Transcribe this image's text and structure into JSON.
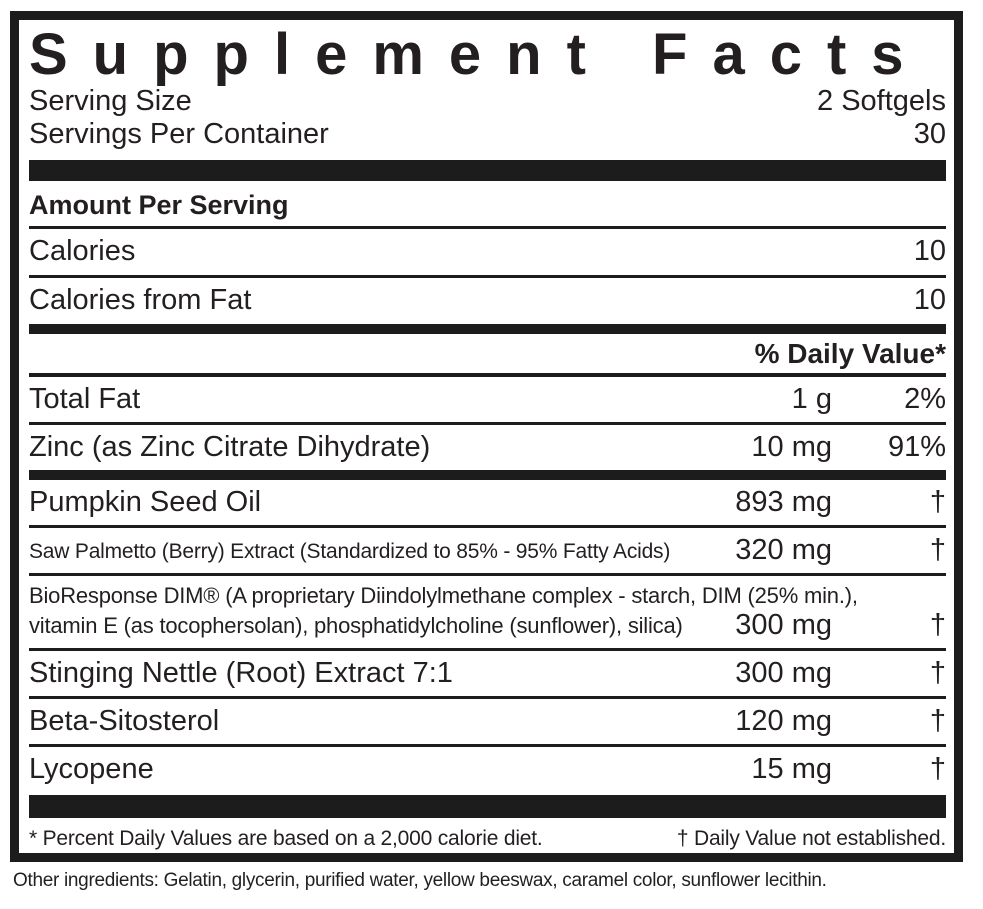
{
  "panel": {
    "title": "Supplement Facts",
    "serving_size": {
      "label": "Serving Size",
      "value": "2 Softgels"
    },
    "servings_per_container": {
      "label": "Servings Per Container",
      "value": "30"
    },
    "amount_per_serving_label": "Amount Per Serving",
    "calories_rows": [
      {
        "label": "Calories",
        "value": "10"
      },
      {
        "label": "Calories from Fat",
        "value": "10"
      }
    ],
    "daily_value_header": "% Daily Value*",
    "nutrient_rows": [
      {
        "name": "Total Fat",
        "amount": "1 g",
        "dv": "2%"
      },
      {
        "name": "Zinc (as Zinc Citrate Dihydrate)",
        "amount": "10 mg",
        "dv": "91%"
      }
    ],
    "ingredient_rows": [
      {
        "name": "Pumpkin Seed Oil",
        "amount": "893 mg",
        "dv": "†"
      },
      {
        "name": "Saw Palmetto (Berry) Extract (Standardized to 85% - 95% Fatty Acids)",
        "amount": "320 mg",
        "dv": "†"
      },
      {
        "name_line1": "BioResponse DIM® (A proprietary Diindolylmethane complex - starch, DIM (25% min.),",
        "name_line2": "vitamin E (as tocophersolan), phosphatidylcholine (sunflower), silica)",
        "amount": "300 mg",
        "dv": "†"
      },
      {
        "name": "Stinging Nettle (Root) Extract 7:1",
        "amount": "300 mg",
        "dv": "†"
      },
      {
        "name": "Beta-Sitosterol",
        "amount": "120 mg",
        "dv": "†"
      },
      {
        "name": "Lycopene",
        "amount": "15 mg",
        "dv": "†"
      }
    ],
    "footnote": {
      "left": "* Percent Daily Values are based on a 2,000 calorie diet.",
      "right": "† Daily Value not established."
    }
  },
  "other_ingredients": "Other ingredients: Gelatin, glycerin, purified water, yellow beeswax, caramel color, sunflower lecithin.",
  "colors": {
    "text": "#231f20",
    "rule": "#1c1c1c",
    "background": "#ffffff"
  }
}
